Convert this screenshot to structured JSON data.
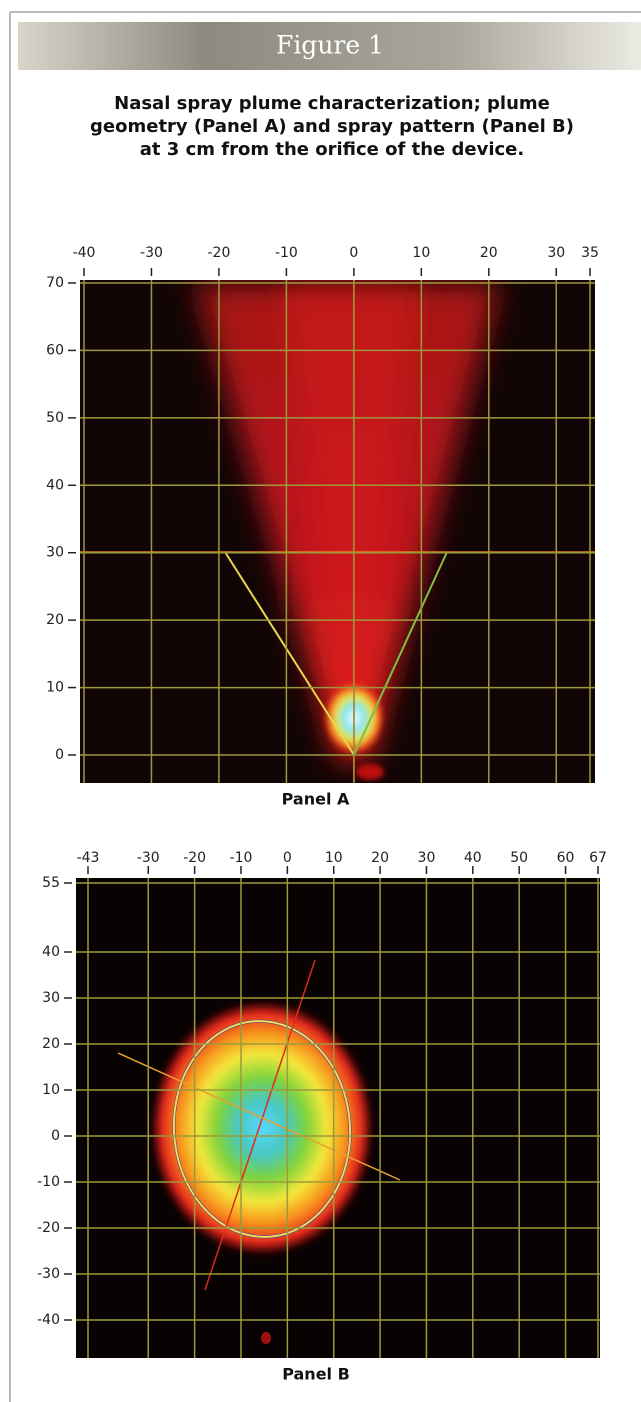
{
  "header": {
    "label": "Figure 1",
    "title": [
      "Nasal spray plume characterization; plume",
      "geometry (Panel A) and spray pattern (Panel B)",
      "at 3 cm from the orifice of the device."
    ]
  },
  "chart_data": [
    {
      "type": "image",
      "caption": "Panel A",
      "grid": true,
      "xlim": [
        -40,
        35
      ],
      "xticks": [
        -40,
        -30,
        -20,
        -10,
        0,
        10,
        20,
        30,
        35
      ],
      "ylim": [
        0,
        70
      ],
      "yticks": [
        0,
        10,
        20,
        30,
        40,
        50,
        60,
        70
      ]
    },
    {
      "type": "image",
      "caption": "Panel B",
      "grid": true,
      "xlim": [
        -43,
        67
      ],
      "xticks": [
        -43,
        -30,
        -20,
        -10,
        0,
        10,
        20,
        30,
        40,
        50,
        60,
        67
      ],
      "ylim": [
        -40,
        55
      ],
      "yticks": [
        -40,
        -30,
        -20,
        -10,
        0,
        10,
        20,
        30,
        40,
        55
      ]
    }
  ]
}
